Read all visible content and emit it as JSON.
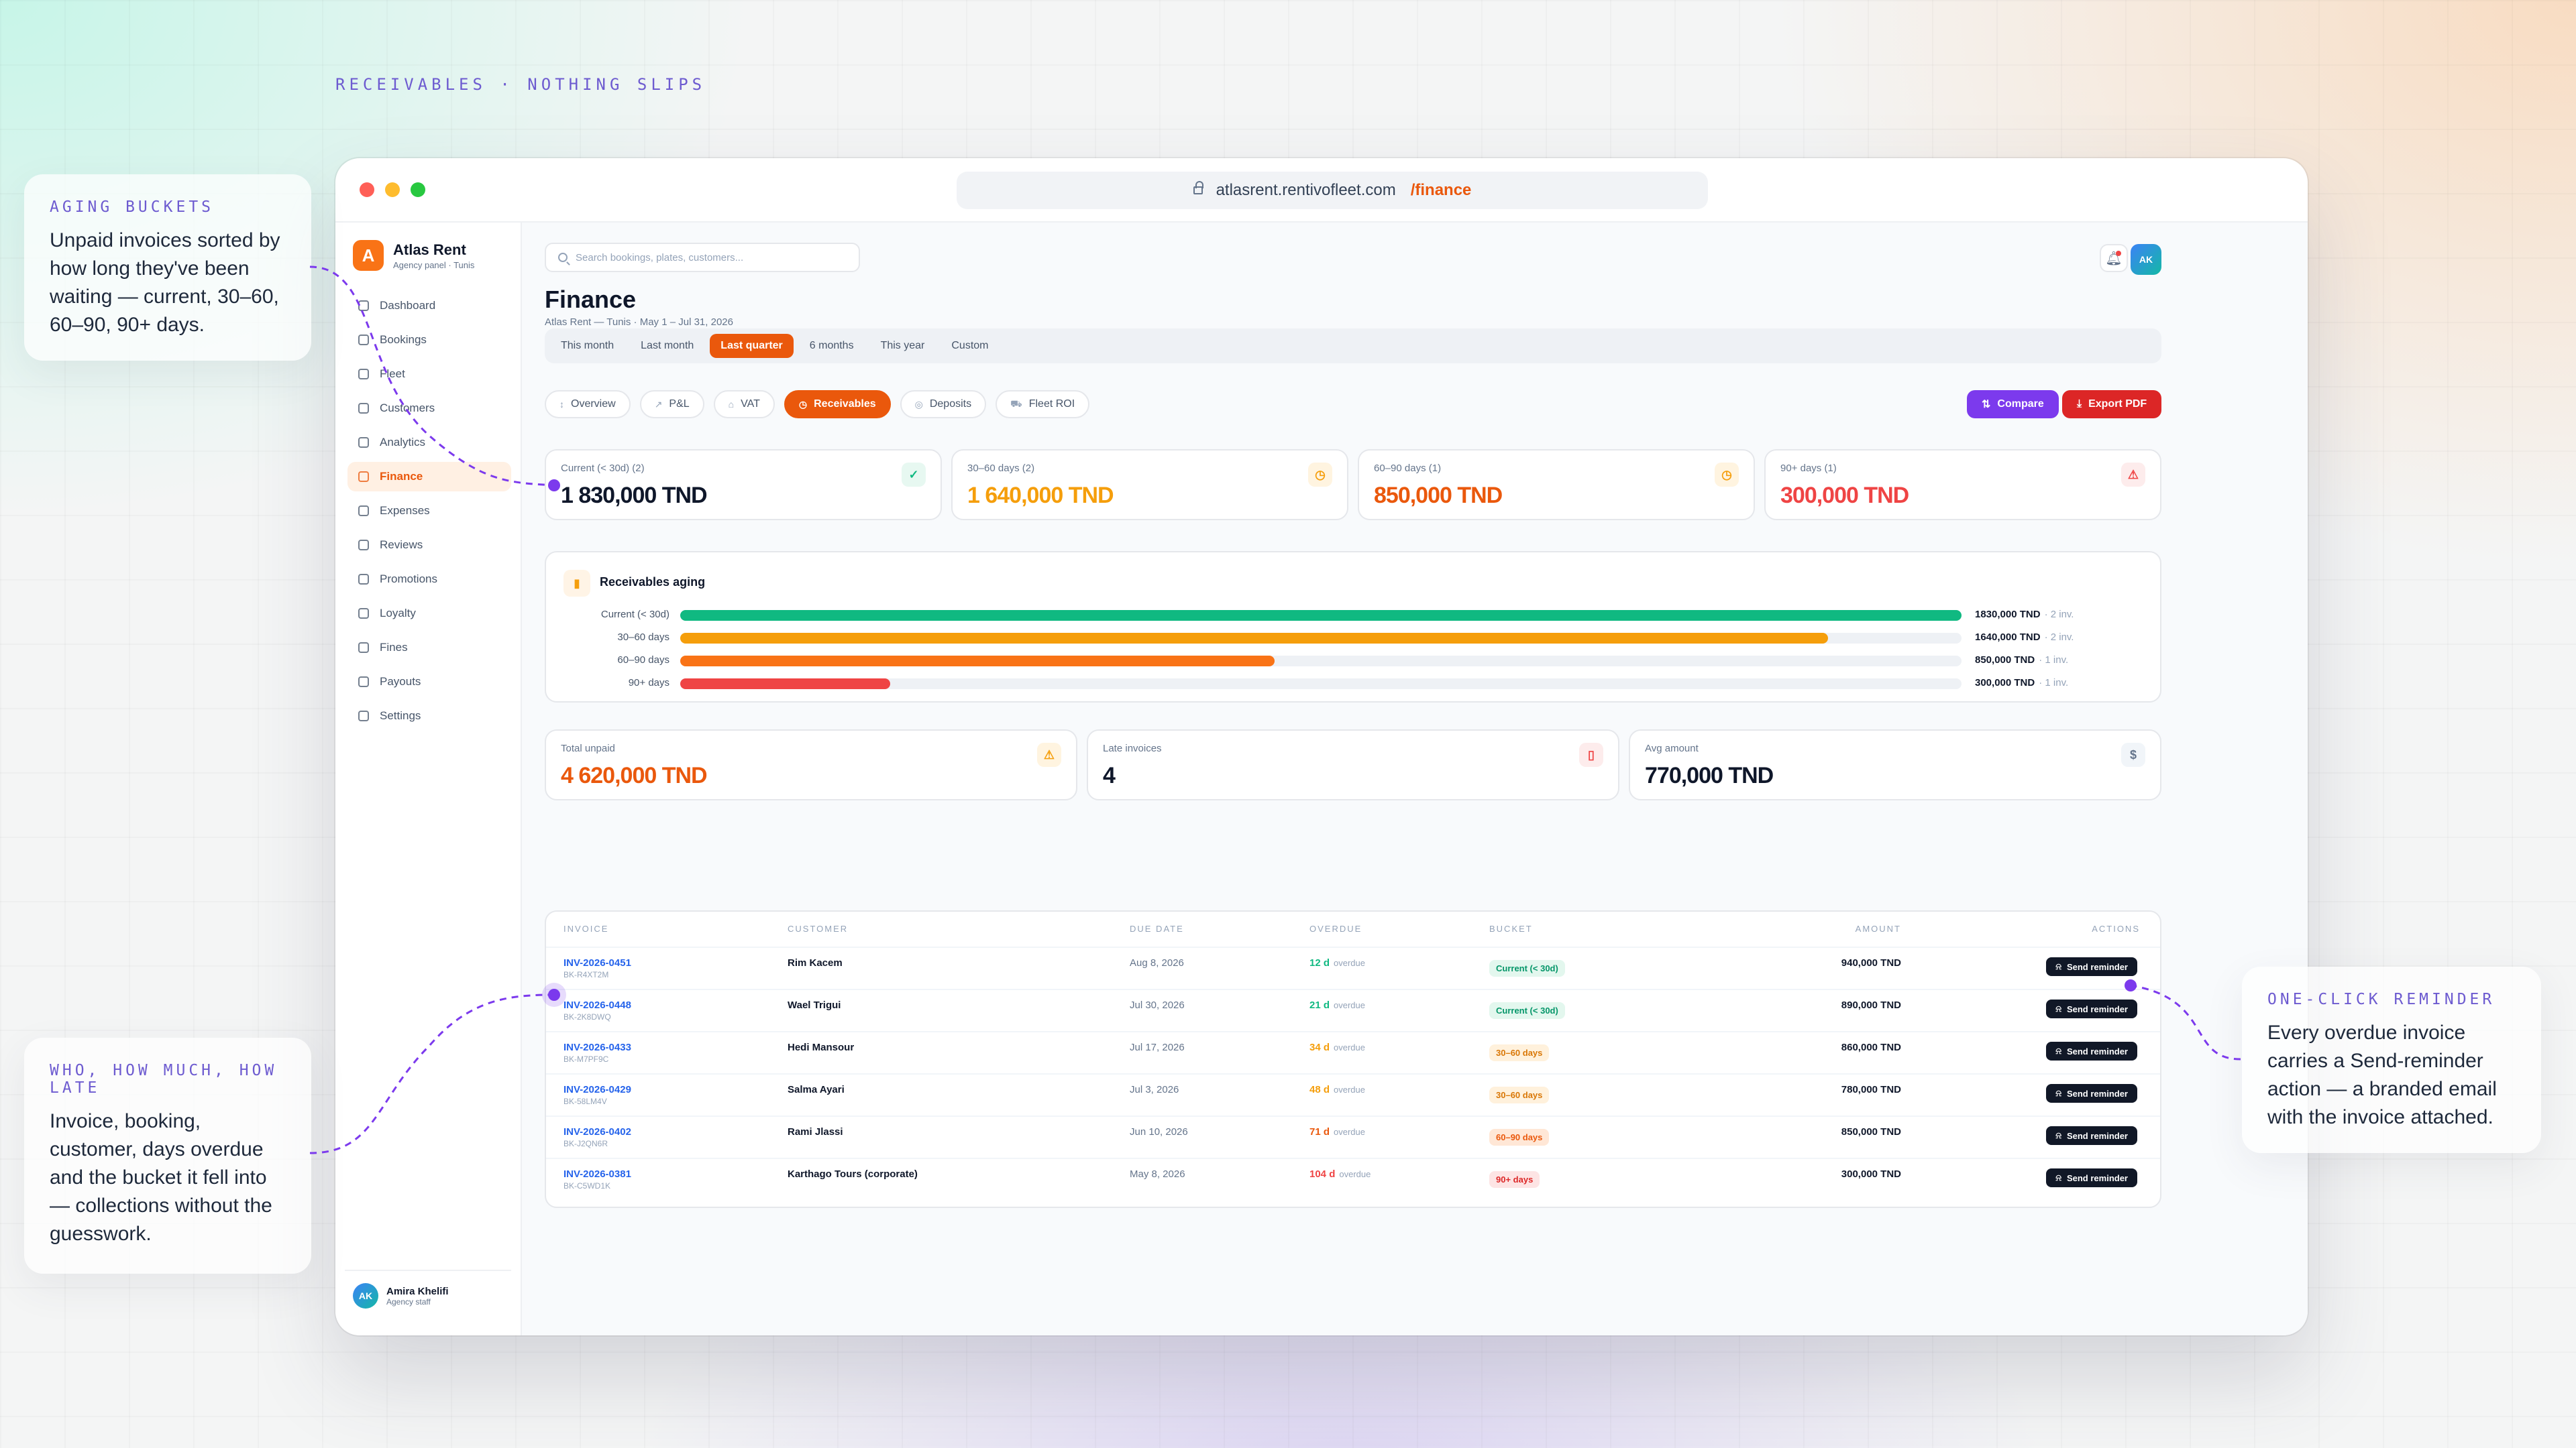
{
  "eyebrow": "RECEIVABLES · NOTHING SLIPS",
  "browser": {
    "domain": "atlasrent.rentivofleet.com",
    "path": "/finance"
  },
  "brand": {
    "initial": "A",
    "name": "Atlas Rent",
    "subtitle": "Agency panel · Tunis"
  },
  "nav": [
    "Dashboard",
    "Bookings",
    "Fleet",
    "Customers",
    "Analytics",
    "Finance",
    "Expenses",
    "Reviews",
    "Promotions",
    "Loyalty",
    "Fines",
    "Payouts",
    "Settings"
  ],
  "active_nav": "Finance",
  "user": {
    "initials": "AK",
    "name": "Amira Khelifi",
    "role": "Agency staff"
  },
  "search": {
    "placeholder": "Search bookings, plates, customers..."
  },
  "page": {
    "title": "Finance",
    "subtitle": "Atlas Rent — Tunis · May 1 – Jul 31, 2026"
  },
  "periods": [
    "This month",
    "Last month",
    "Last quarter",
    "6 months",
    "This year",
    "Custom"
  ],
  "active_period": "Last quarter",
  "tabs": [
    {
      "label": "Overview",
      "icon": "↕"
    },
    {
      "label": "P&L",
      "icon": "↗"
    },
    {
      "label": "VAT",
      "icon": "⌂"
    },
    {
      "label": "Receivables",
      "icon": "◷"
    },
    {
      "label": "Deposits",
      "icon": "◎"
    },
    {
      "label": "Fleet ROI",
      "icon": "⛟"
    }
  ],
  "active_tab": "Receivables",
  "actions": {
    "compare": "Compare",
    "export": "Export PDF"
  },
  "kpis": [
    {
      "label": "Current (< 30d) (2)",
      "value": "1 830,000 TND",
      "color": "#0f172a",
      "icon": "✓",
      "icon_color": "#10b981",
      "icon_bg": "#e7f8f1"
    },
    {
      "label": "30–60 days (2)",
      "value": "1 640,000 TND",
      "color": "#f59e0b",
      "icon": "◷",
      "icon_color": "#f59e0b",
      "icon_bg": "#fff4e0"
    },
    {
      "label": "60–90 days (1)",
      "value": "850,000 TND",
      "color": "#ea580c",
      "icon": "◷",
      "icon_color": "#f59e0b",
      "icon_bg": "#fff4e0"
    },
    {
      "label": "90+ days (1)",
      "value": "300,000 TND",
      "color": "#ef4444",
      "icon": "⚠",
      "icon_color": "#ef4444",
      "icon_bg": "#fdecec"
    }
  ],
  "aging": {
    "title": "Receivables aging",
    "rows": [
      {
        "label": "Current (< 30d)",
        "amount": "1830,000 TND",
        "count": "· 2 inv.",
        "fraction": 1.0,
        "color": "#10b981"
      },
      {
        "label": "30–60 days",
        "amount": "1640,000 TND",
        "count": "· 2 inv.",
        "fraction": 0.896,
        "color": "#f59e0b"
      },
      {
        "label": "60–90 days",
        "amount": "850,000 TND",
        "count": "· 1 inv.",
        "fraction": 0.464,
        "color": "#f97316"
      },
      {
        "label": "90+ days",
        "amount": "300,000 TND",
        "count": "· 1 inv.",
        "fraction": 0.164,
        "color": "#ef4444"
      }
    ]
  },
  "summary": [
    {
      "label": "Total unpaid",
      "value": "4 620,000 TND",
      "color": "#ea580c",
      "icon": "⚠",
      "icon_color": "#f59e0b",
      "icon_bg": "#fff4e0"
    },
    {
      "label": "Late invoices",
      "value": "4",
      "color": "#0f172a",
      "icon": "▯",
      "icon_color": "#ef4444",
      "icon_bg": "#fdecec"
    },
    {
      "label": "Avg amount",
      "value": "770,000 TND",
      "color": "#0f172a",
      "icon": "$",
      "icon_color": "#64748b",
      "icon_bg": "#f1f5f9"
    }
  ],
  "table": {
    "headers": [
      "INVOICE",
      "CUSTOMER",
      "DUE DATE",
      "OVERDUE",
      "BUCKET",
      "AMOUNT",
      "ACTIONS"
    ],
    "overdue_suffix": "overdue",
    "action_label": "Send reminder",
    "rows": [
      {
        "invoice": "INV-2026-0451",
        "booking": "BK-R4XT2M",
        "customer": "Rim Kacem",
        "due": "Aug 8, 2026",
        "overdue": "12 d",
        "overdue_color": "#10b981",
        "bucket": "Current (< 30d)",
        "bucket_fg": "#059669",
        "bucket_bg": "#e3f7ee",
        "amount": "940,000 TND"
      },
      {
        "invoice": "INV-2026-0448",
        "booking": "BK-2K8DWQ",
        "customer": "Wael Trigui",
        "due": "Jul 30, 2026",
        "overdue": "21 d",
        "overdue_color": "#10b981",
        "bucket": "Current (< 30d)",
        "bucket_fg": "#059669",
        "bucket_bg": "#e3f7ee",
        "amount": "890,000 TND"
      },
      {
        "invoice": "INV-2026-0433",
        "booking": "BK-M7PF9C",
        "customer": "Hedi Mansour",
        "due": "Jul 17, 2026",
        "overdue": "34 d",
        "overdue_color": "#f59e0b",
        "bucket": "30–60 days",
        "bucket_fg": "#d97706",
        "bucket_bg": "#fff1dc",
        "amount": "860,000 TND"
      },
      {
        "invoice": "INV-2026-0429",
        "booking": "BK-58LM4V",
        "customer": "Salma Ayari",
        "due": "Jul 3, 2026",
        "overdue": "48 d",
        "overdue_color": "#f59e0b",
        "bucket": "30–60 days",
        "bucket_fg": "#d97706",
        "bucket_bg": "#fff1dc",
        "amount": "780,000 TND"
      },
      {
        "invoice": "INV-2026-0402",
        "booking": "BK-J2QN6R",
        "customer": "Rami Jlassi",
        "due": "Jun 10, 2026",
        "overdue": "71 d",
        "overdue_color": "#ea580c",
        "bucket": "60–90 days",
        "bucket_fg": "#ea580c",
        "bucket_bg": "#ffe7d6",
        "amount": "850,000 TND"
      },
      {
        "invoice": "INV-2026-0381",
        "booking": "BK-C5WD1K",
        "customer": "Karthago Tours (corporate)",
        "due": "May 8, 2026",
        "overdue": "104 d",
        "overdue_color": "#ef4444",
        "bucket": "90+ days",
        "bucket_fg": "#dc2626",
        "bucket_bg": "#fde4e4",
        "amount": "300,000 TND"
      }
    ]
  },
  "callouts": {
    "aging": {
      "eyebrow": "AGING BUCKETS",
      "text": "Unpaid invoices sorted by how long they've been waiting — current, 30–60, 60–90, 90+ days."
    },
    "who": {
      "eyebrow": "WHO, HOW MUCH, HOW LATE",
      "text": "Invoice, booking, customer, days overdue and the bucket it fell into — collections without the guesswork."
    },
    "reminder": {
      "eyebrow": "ONE-CLICK REMINDER",
      "text": "Every overdue invoice carries a Send-reminder action — a branded email with the invoice attached."
    }
  }
}
